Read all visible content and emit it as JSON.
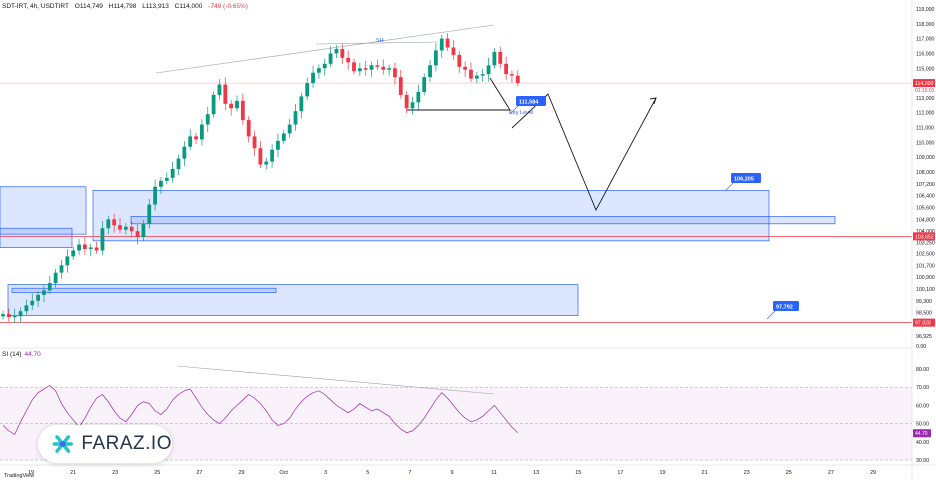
{
  "header": {
    "symbol": "SDT-IRT, 4h, USDTIRT",
    "open": "O114,749",
    "high": "H114,798",
    "low": "L113,913",
    "close": "C114,000",
    "change": "-749 (-0.65%)"
  },
  "rsi_label": {
    "name": "SI (14)",
    "value": "44.70"
  },
  "watermark": "FARAZ.IO",
  "tv_label": "TradingView",
  "colors": {
    "up": "#089981",
    "down": "#f23645",
    "zone_fill": "#2962ff",
    "zone_border": "#2962ff",
    "red_line": "#f23645",
    "rsi": "#9c27b0",
    "tag": "#2962ff"
  },
  "chart_data": [
    {
      "type": "candlestick",
      "title": "",
      "x_tick_labels": [
        "19",
        "21",
        "23",
        "25",
        "27",
        "29",
        "Oct",
        "3",
        "5",
        "7",
        "9",
        "11",
        "13",
        "15",
        "17",
        "19",
        "21",
        "23",
        "25",
        "27",
        "29"
      ],
      "y_tick_labels": [
        "119,000",
        "118,000",
        "117,000",
        "116,000",
        "115,000",
        "114,000",
        "113,000",
        "112,000",
        "111,000",
        "110,000",
        "109,000",
        "108,000",
        "107,200",
        "106,400",
        "105,600",
        "104,800",
        "104,000",
        "103,250",
        "102,500",
        "101,700",
        "100,900",
        "100,100",
        "99,300",
        "98,500",
        "97,700",
        "96,925",
        "0.00"
      ],
      "last_price_label": "114,000",
      "countdown_label": "01:16:01",
      "close_series": [
        98400,
        98200,
        98300,
        98600,
        99000,
        99300,
        99700,
        100000,
        100500,
        101200,
        101700,
        102300,
        102700,
        103100,
        102800,
        102900,
        102700,
        104200,
        104800,
        104400,
        104100,
        104300,
        104000,
        103600,
        104500,
        105800,
        107000,
        107400,
        107600,
        108200,
        108900,
        109700,
        110400,
        110200,
        111200,
        111900,
        113200,
        113900,
        112600,
        112300,
        112800,
        111500,
        110400,
        109600,
        108500,
        108700,
        109500,
        110100,
        110600,
        111200,
        112100,
        113100,
        114000,
        114700,
        115000,
        115300,
        116000,
        116300,
        115700,
        115400,
        114800,
        115000,
        114900,
        115200,
        115100,
        114900,
        115000,
        114400,
        113200,
        112300,
        112700,
        113400,
        114400,
        115200,
        116200,
        117000,
        116400,
        115900,
        115100,
        114900,
        114300,
        114500,
        114600,
        115200,
        116100,
        115300,
        114600,
        114500,
        114000
      ],
      "shapes": {
        "SH_label": "SH",
        "key_level_label": "Key Level",
        "tags": [
          "111,584",
          "106,205",
          "97,792"
        ],
        "red_line_tags": [
          "103,652",
          "97,828"
        ]
      }
    },
    {
      "type": "line",
      "title": "RSI (14)",
      "y_tick_labels": [
        "80.00",
        "70.00",
        "60.00",
        "50.00",
        "44.70",
        "40.00",
        "30.00"
      ],
      "band": [
        30,
        70
      ],
      "midline": 50,
      "last_value": 44.7,
      "values": [
        49,
        46,
        44,
        51,
        57,
        63,
        67,
        69,
        71,
        68,
        61,
        56,
        52,
        48,
        53,
        59,
        64,
        66,
        62,
        57,
        53,
        51,
        55,
        60,
        62,
        61,
        57,
        55,
        58,
        63,
        66,
        68,
        69,
        64,
        59,
        55,
        52,
        50,
        53,
        57,
        60,
        63,
        66,
        64,
        61,
        57,
        52,
        49,
        50,
        53,
        58,
        62,
        65,
        67,
        68,
        66,
        63,
        60,
        58,
        56,
        58,
        61,
        59,
        57,
        58,
        56,
        54,
        50,
        47,
        45,
        46,
        49,
        53,
        58,
        63,
        67,
        64,
        60,
        56,
        53,
        51,
        52,
        54,
        57,
        60,
        56,
        52,
        48,
        45
      ]
    }
  ]
}
